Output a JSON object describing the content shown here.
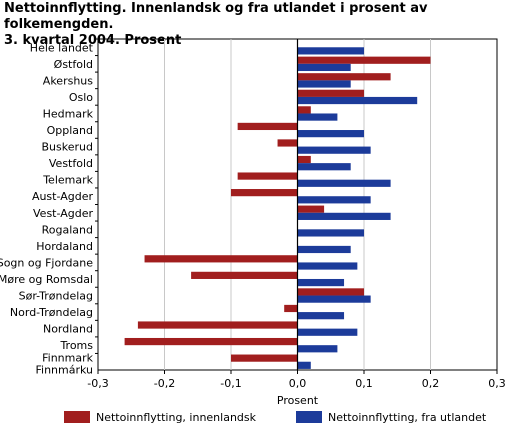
{
  "title_line1": "Nettoinnflytting. Innenlandsk og fra utlandet i prosent av folkemengden.",
  "title_line2": "3. kvartal 2004. Prosent",
  "colors": {
    "innenlandsk": "#a11e1e",
    "utlandet": "#1c3b9a",
    "grid": "#c8c8c8",
    "axis": "#000000"
  },
  "chart_data": {
    "type": "bar",
    "orientation": "horizontal",
    "title": "Nettoinnflytting. Innenlandsk og fra utlandet i prosent av folkemengden. 3. kvartal 2004. Prosent",
    "xlabel": "Prosent",
    "ylabel": "",
    "xlim": [
      -0.3,
      0.3
    ],
    "xticks": [
      -0.3,
      -0.2,
      -0.1,
      0.0,
      0.1,
      0.2,
      0.3
    ],
    "xtick_labels": [
      "-0,3",
      "-0,2",
      "-0,1",
      "0,0",
      "0,1",
      "0,2",
      "0,3"
    ],
    "grid": true,
    "legend_position": "bottom",
    "categories": [
      "Hele landet",
      "Østfold",
      "Akershus",
      "Oslo",
      "Hedmark",
      "Oppland",
      "Buskerud",
      "Vestfold",
      "Telemark",
      "Aust-Agder",
      "Vest-Agder",
      "Rogaland",
      "Hordaland",
      "Sogn og Fjordane",
      "Møre og Romsdal",
      "Sør-Trøndelag",
      "Nord-Trøndelag",
      "Nordland",
      "Troms",
      "Finnmark Finnmárku"
    ],
    "category_lines": [
      [
        "Hele landet"
      ],
      [
        "Østfold"
      ],
      [
        "Akershus"
      ],
      [
        "Oslo"
      ],
      [
        "Hedmark"
      ],
      [
        "Oppland"
      ],
      [
        "Buskerud"
      ],
      [
        "Vestfold"
      ],
      [
        "Telemark"
      ],
      [
        "Aust-Agder"
      ],
      [
        "Vest-Agder"
      ],
      [
        "Rogaland"
      ],
      [
        "Hordaland"
      ],
      [
        "Sogn og Fjordane"
      ],
      [
        "Møre og Romsdal"
      ],
      [
        "Sør-Trøndelag"
      ],
      [
        "Nord-Trøndelag"
      ],
      [
        "Nordland"
      ],
      [
        "Troms"
      ],
      [
        "Finnmark",
        "Finnmárku"
      ]
    ],
    "series": [
      {
        "name": "Nettoinnflytting, innenlandsk",
        "color": "#a11e1e",
        "values": [
          0.0,
          0.2,
          0.14,
          0.1,
          0.02,
          -0.09,
          -0.03,
          0.02,
          -0.09,
          -0.1,
          0.04,
          0.0,
          0.0,
          -0.23,
          -0.16,
          0.1,
          -0.02,
          -0.24,
          -0.26,
          -0.1
        ]
      },
      {
        "name": "Nettoinnflytting, fra utlandet",
        "color": "#1c3b9a",
        "values": [
          0.1,
          0.08,
          0.08,
          0.18,
          0.06,
          0.1,
          0.11,
          0.08,
          0.14,
          0.11,
          0.14,
          0.1,
          0.08,
          0.09,
          0.07,
          0.11,
          0.07,
          0.09,
          0.06,
          0.02
        ]
      }
    ]
  }
}
